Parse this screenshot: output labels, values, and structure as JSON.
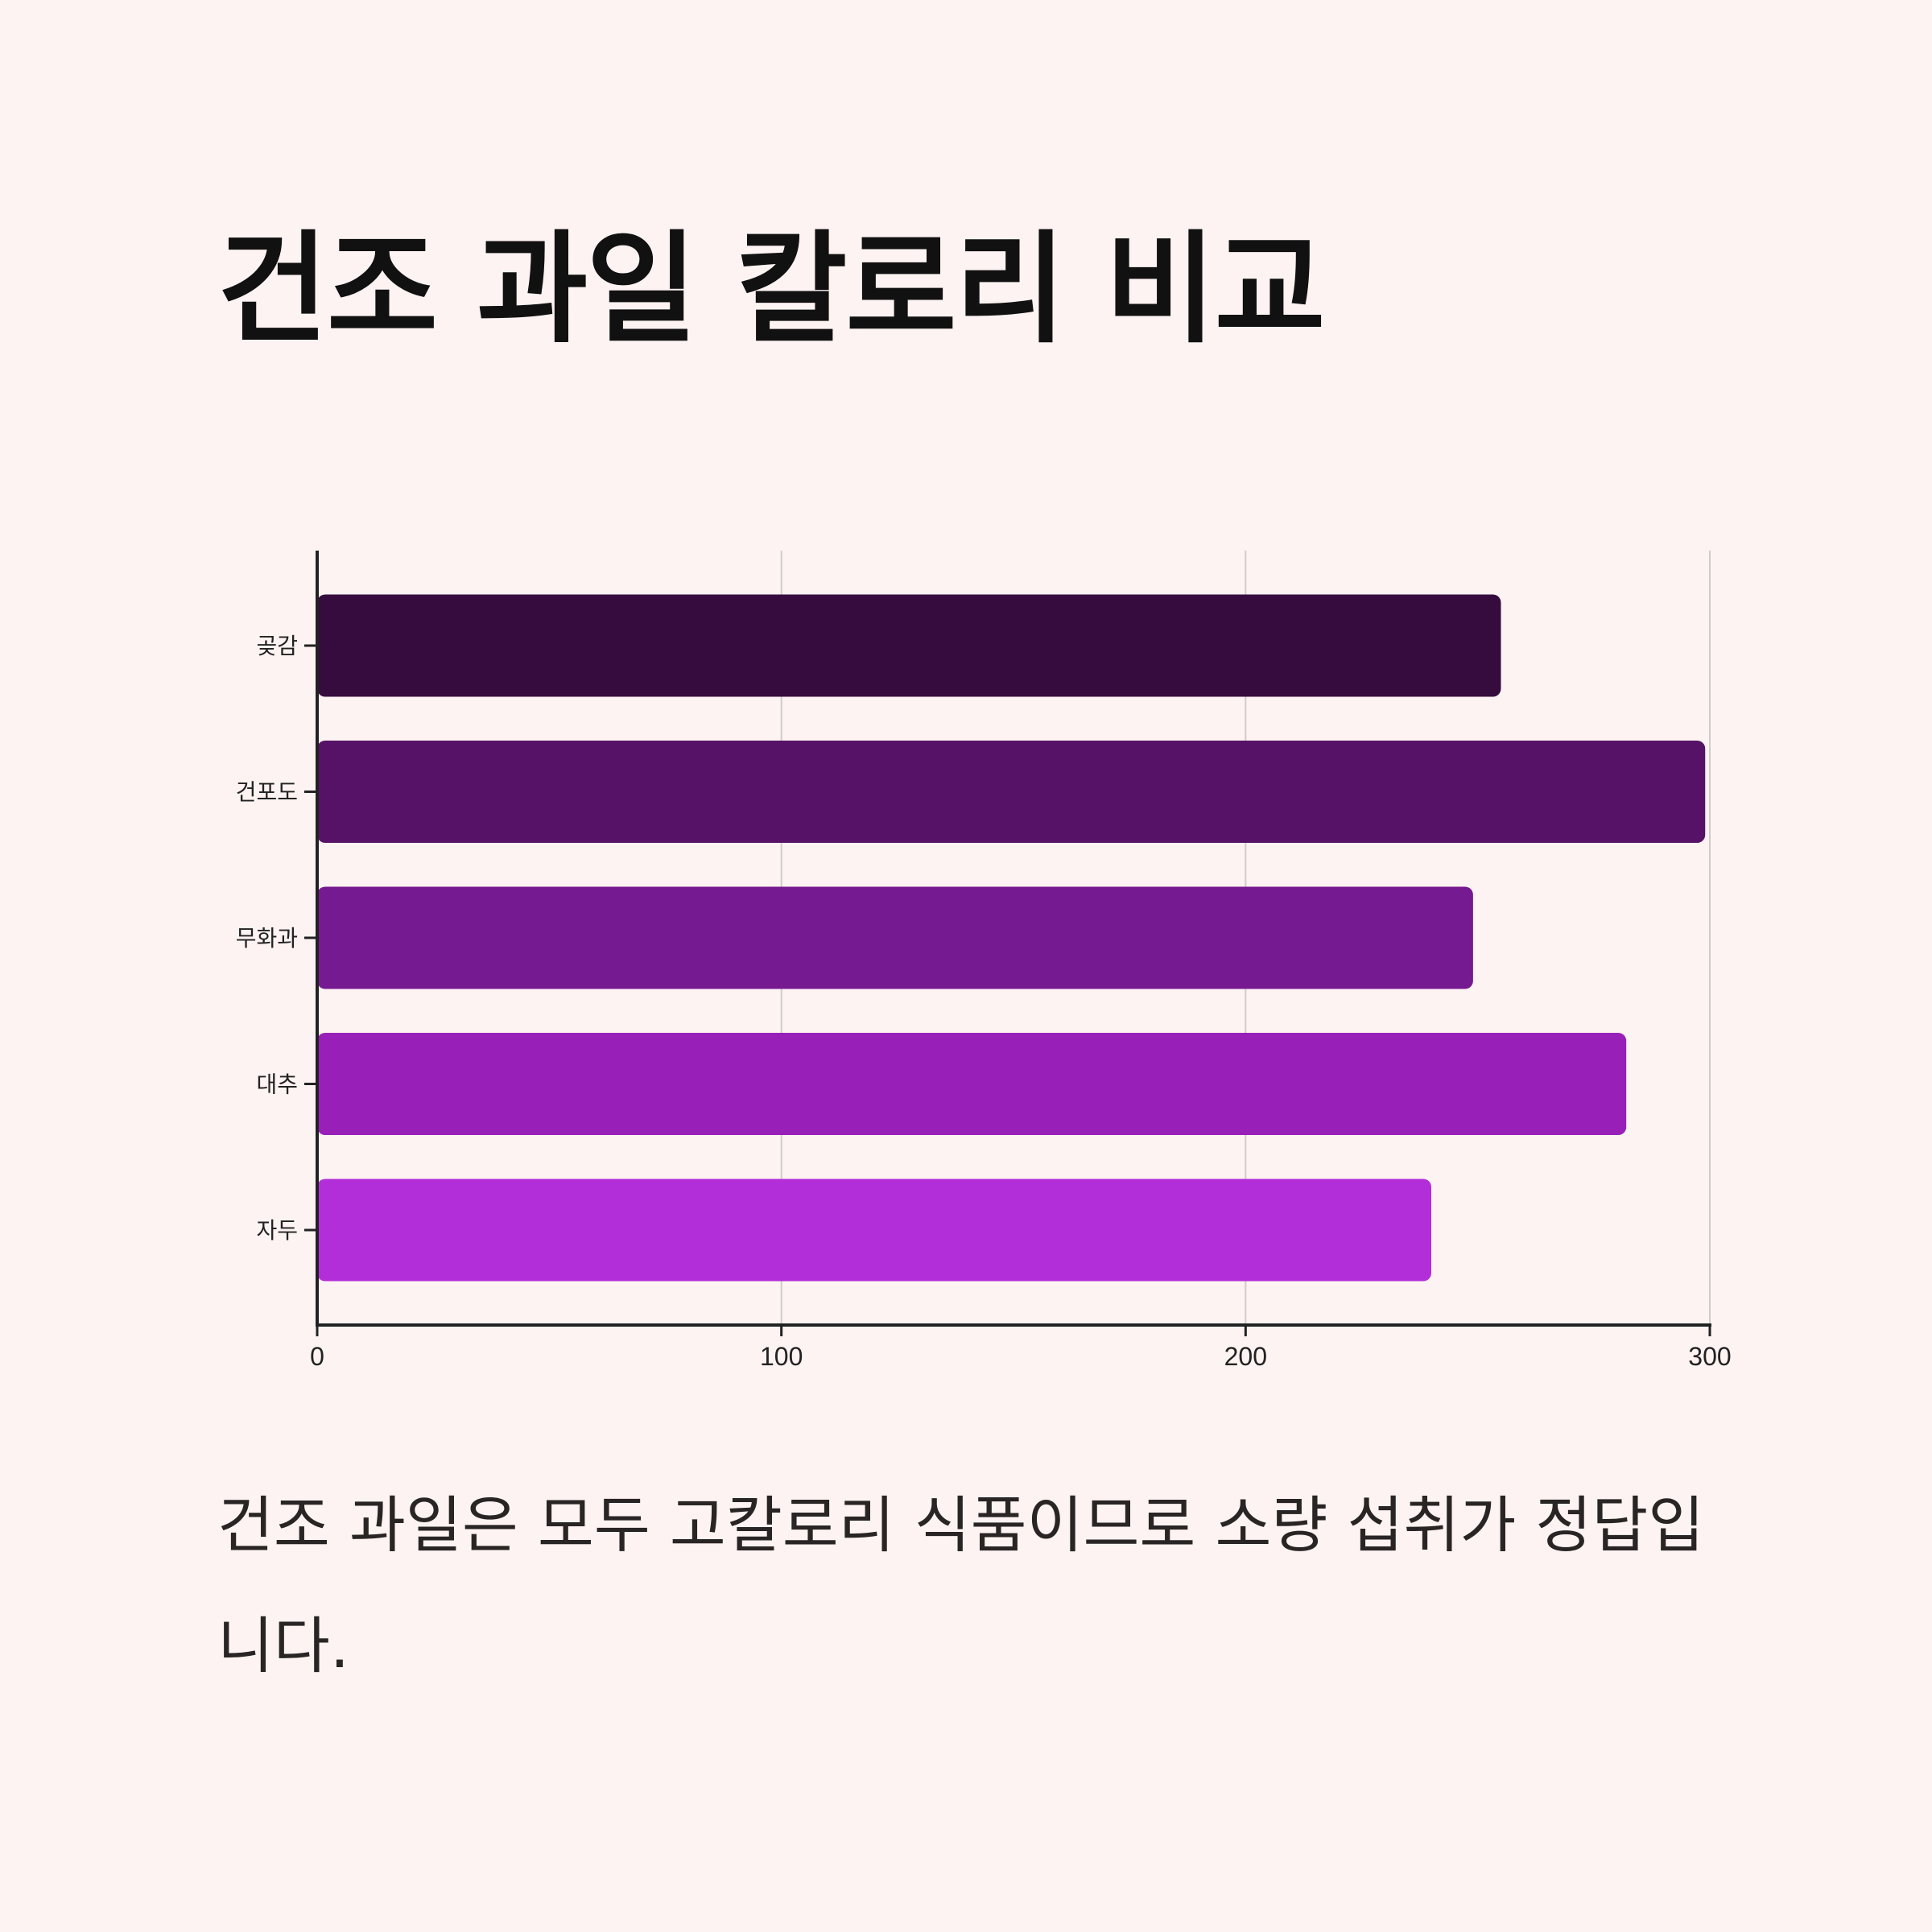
{
  "title": "건조 과일 칼로리 비교",
  "caption": "건조 과일은 모두 고칼로리 식품이므로 소량 섭취가 정답입니다.",
  "chart_data": {
    "type": "bar",
    "orientation": "horizontal",
    "title": "건조 과일 칼로리 비교",
    "xlabel": "",
    "ylabel": "",
    "categories": [
      "곶감",
      "건포도",
      "무화과",
      "대추",
      "자두"
    ],
    "values": [
      255,
      299,
      249,
      282,
      240
    ],
    "colors": [
      "#360c3e",
      "#561266",
      "#761a91",
      "#9820b9",
      "#b22ed9"
    ],
    "xlim": [
      0,
      300
    ],
    "xticks": [
      0,
      100,
      200,
      300
    ],
    "grid": "vertical",
    "legend": "none"
  }
}
